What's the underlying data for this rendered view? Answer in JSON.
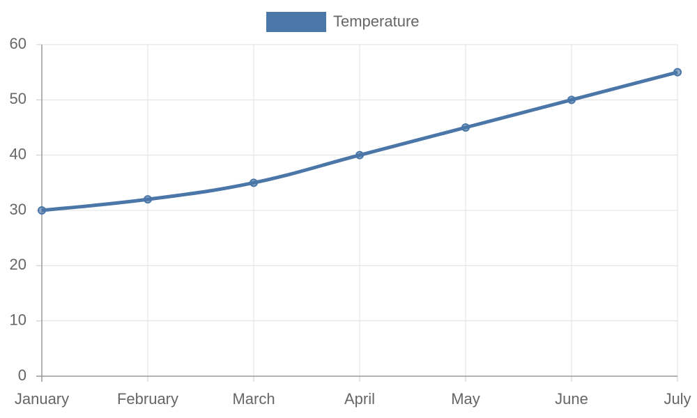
{
  "chart_data": {
    "type": "line",
    "categories": [
      "January",
      "February",
      "March",
      "April",
      "May",
      "June",
      "July"
    ],
    "series": [
      {
        "name": "Temperature",
        "color": "#4a76a8",
        "values": [
          30,
          32,
          35,
          40,
          45,
          50,
          55
        ]
      }
    ],
    "ylim": [
      0,
      60
    ],
    "yticks": [
      0,
      10,
      20,
      30,
      40,
      50,
      60
    ],
    "grid": true,
    "legend": "top"
  }
}
